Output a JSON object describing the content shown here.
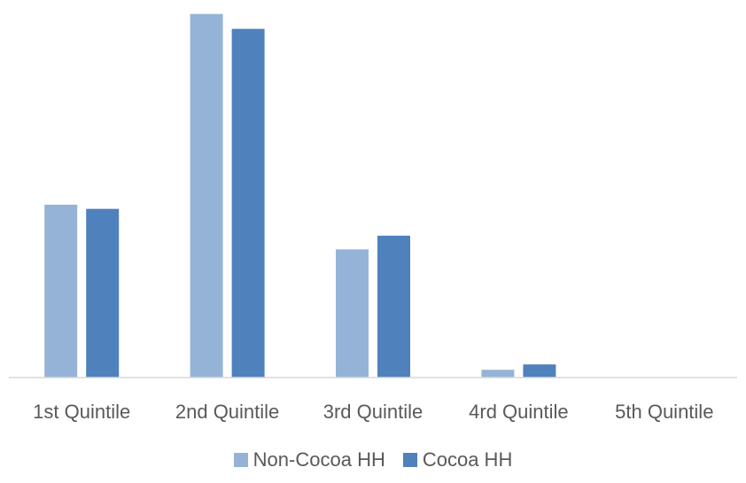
{
  "chart_data": {
    "type": "bar",
    "title": "",
    "xlabel": "",
    "ylabel": "",
    "categories": [
      "1st Quintile",
      "2nd Quintile",
      "3rd Quintile",
      "4rd Quintile",
      "5th Quintile"
    ],
    "series": [
      {
        "name": "Non-Cocoa HH",
        "color": "#95b3d7",
        "values": [
          29.0,
          61.0,
          21.5,
          1.3,
          0
        ]
      },
      {
        "name": "Cocoa HH",
        "color": "#4f81bd",
        "values": [
          28.3,
          58.5,
          23.8,
          2.2,
          0
        ]
      }
    ],
    "ylim": [
      0,
      62
    ],
    "grid": false,
    "legend_position": "bottom"
  }
}
